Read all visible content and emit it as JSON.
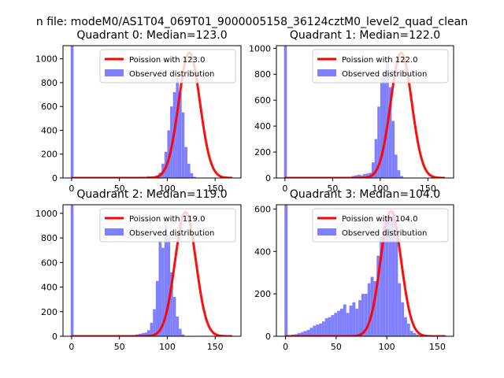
{
  "figure": {
    "suptitle": "n file: modeM0/AS1T04_069T01_9000005158_36124cztM0_level2_quad_clean"
  },
  "chart_data": [
    {
      "type": "bar+line",
      "title": "Quadrant 0: Median=123.0",
      "median": 123.0,
      "xlim": [
        -9,
        177
      ],
      "ylim": [
        0,
        1110
      ],
      "xticks": [
        0,
        50,
        100,
        150
      ],
      "yticks": [
        0,
        200,
        400,
        600,
        800,
        1000
      ],
      "legend": [
        "Poission with 123.0",
        "Observed distribution"
      ],
      "legend_loc": "upper right",
      "spike": {
        "x": 0,
        "value": 1110
      },
      "histogram": {
        "bin_start": 76,
        "bin_width": 3,
        "values": [
          10,
          15,
          12,
          8,
          20,
          45,
          120,
          220,
          400,
          600,
          720,
          840,
          720,
          550,
          260,
          120,
          40,
          10
        ]
      },
      "poisson": {
        "mean": 123.0,
        "peak": 1050,
        "x_range": [
          0,
          168
        ]
      }
    },
    {
      "type": "bar+line",
      "title": "Quadrant 1: Median=122.0",
      "median": 122.0,
      "xlim": [
        -9,
        177
      ],
      "ylim": [
        0,
        1020
      ],
      "xticks": [
        0,
        50,
        100,
        150
      ],
      "yticks": [
        0,
        200,
        400,
        600,
        800,
        1000
      ],
      "legend": [
        "Poission with 122.0",
        "Observed distribution"
      ],
      "legend_loc": "upper right",
      "spike": {
        "x": 0,
        "value": 1020
      },
      "histogram": {
        "bin_start": 70,
        "bin_width": 3,
        "values": [
          15,
          20,
          25,
          20,
          30,
          35,
          40,
          120,
          300,
          550,
          780,
          820,
          900,
          700,
          440,
          180,
          60,
          15
        ]
      },
      "poisson": {
        "mean": 122.0,
        "peak": 965,
        "x_range": [
          0,
          168
        ]
      }
    },
    {
      "type": "bar+line",
      "title": "Quadrant 2: Median=119.0",
      "median": 119.0,
      "xlim": [
        -9,
        177
      ],
      "ylim": [
        0,
        1070
      ],
      "xticks": [
        0,
        50,
        100,
        150
      ],
      "yticks": [
        0,
        200,
        400,
        600,
        800,
        1000
      ],
      "legend": [
        "Poission with 119.0",
        "Observed distribution"
      ],
      "legend_loc": "upper right",
      "spike": {
        "x": 0,
        "value": 1070
      },
      "histogram": {
        "bin_start": 64,
        "bin_width": 3,
        "values": [
          10,
          15,
          20,
          25,
          30,
          50,
          110,
          220,
          450,
          780,
          720,
          900,
          820,
          520,
          320,
          160,
          60,
          15
        ]
      },
      "poisson": {
        "mean": 119.0,
        "peak": 1010,
        "x_range": [
          0,
          168
        ]
      }
    },
    {
      "type": "bar+line",
      "title": "Quadrant 3: Median=104.0",
      "median": 104.0,
      "xlim": [
        -9,
        166
      ],
      "ylim": [
        0,
        620
      ],
      "xticks": [
        0,
        50,
        100,
        150
      ],
      "yticks": [
        0,
        200,
        400,
        600
      ],
      "legend": [
        "Poission with 104.0",
        "Observed distribution"
      ],
      "legend_loc": "upper right",
      "spike": {
        "x": 0,
        "value": 620
      },
      "histogram": {
        "bin_start": 3,
        "bin_width": 3,
        "values": [
          5,
          8,
          10,
          15,
          20,
          25,
          30,
          40,
          50,
          55,
          60,
          70,
          85,
          90,
          100,
          110,
          120,
          130,
          150,
          110,
          145,
          160,
          130,
          170,
          200,
          200,
          250,
          280,
          260,
          380,
          470,
          540,
          570,
          560,
          590,
          480,
          250,
          160,
          90,
          60,
          25,
          15,
          8,
          5
        ]
      },
      "poisson": {
        "mean": 104.0,
        "peak": 590,
        "x_range": [
          0,
          158
        ]
      }
    }
  ]
}
